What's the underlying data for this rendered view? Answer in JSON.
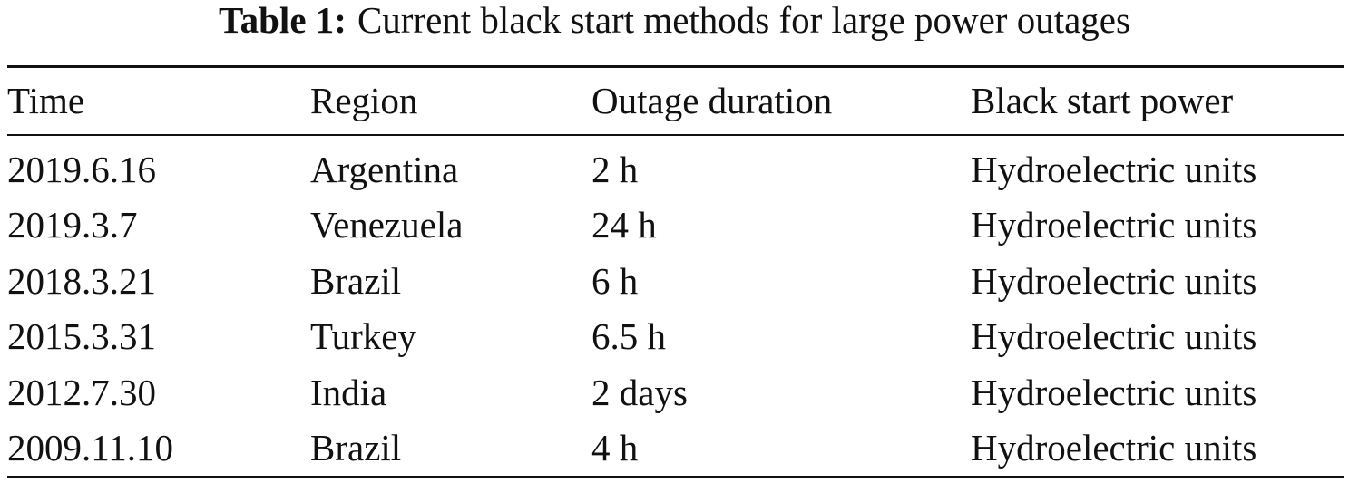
{
  "caption": {
    "label": "Table 1:",
    "text": "Current black start methods for large power outages"
  },
  "table": {
    "header": [
      "Time",
      "Region",
      "Outage duration",
      "Black start power"
    ],
    "rows": [
      [
        "2019.6.16",
        "Argentina",
        "2 h",
        "Hydroelectric units"
      ],
      [
        "2019.3.7",
        "Venezuela",
        "24 h",
        "Hydroelectric units"
      ],
      [
        "2018.3.21",
        "Brazil",
        "6 h",
        "Hydroelectric units"
      ],
      [
        "2015.3.31",
        "Turkey",
        "6.5 h",
        "Hydroelectric units"
      ],
      [
        "2012.7.30",
        "India",
        "2 days",
        "Hydroelectric units"
      ],
      [
        "2009.11.10",
        "Brazil",
        "4 h",
        "Hydroelectric units"
      ]
    ]
  }
}
